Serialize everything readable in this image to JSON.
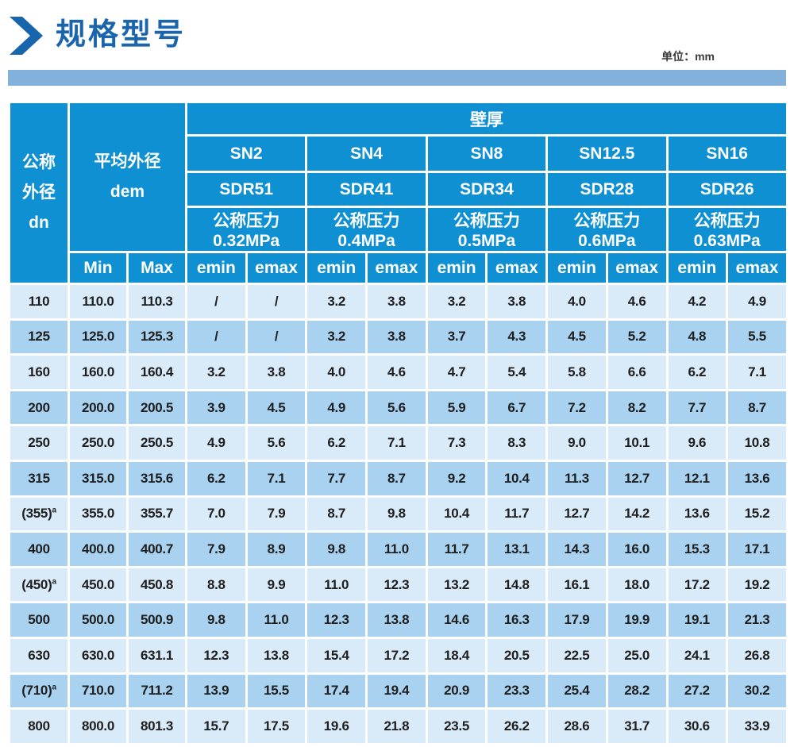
{
  "page": {
    "title": "规格型号",
    "unit_label": "单位：mm"
  },
  "colors": {
    "title_blue": "#1b65ad",
    "divider_blue": "#82b2dc",
    "header_blue": "#0f90d3",
    "row_light": "#d9eaf8",
    "row_dark": "#a8d2f0",
    "header_text": "#ffffff",
    "data_text": "#1e1e1e"
  },
  "table": {
    "header": {
      "dn_line1": "公称",
      "dn_line2": "外径",
      "dn_line3": "dn",
      "dem_line1": "平均外径",
      "dem_line2": "dem",
      "wall_thickness": "壁厚",
      "min_label": "Min",
      "max_label": "Max",
      "emin": "emin",
      "emax": "emax",
      "groups": [
        {
          "sn": "SN2",
          "sdr": "SDR51",
          "pressure": "公称压力0.32MPa"
        },
        {
          "sn": "SN4",
          "sdr": "SDR41",
          "pressure": "公称压力0.4MPa"
        },
        {
          "sn": "SN8",
          "sdr": "SDR34",
          "pressure": "公称压力0.5MPa"
        },
        {
          "sn": "SN12.5",
          "sdr": "SDR28",
          "pressure": "公称压力0.6MPa"
        },
        {
          "sn": "SN16",
          "sdr": "SDR26",
          "pressure": "公称压力0.63MPa"
        }
      ]
    },
    "rows": [
      {
        "dn": "110",
        "values": [
          "110.0",
          "110.3",
          "/",
          "/",
          "3.2",
          "3.8",
          "3.2",
          "3.8",
          "4.0",
          "4.6",
          "4.2",
          "4.9"
        ]
      },
      {
        "dn": "125",
        "values": [
          "125.0",
          "125.3",
          "/",
          "/",
          "3.2",
          "3.8",
          "3.7",
          "4.3",
          "4.5",
          "5.2",
          "4.8",
          "5.5"
        ]
      },
      {
        "dn": "160",
        "values": [
          "160.0",
          "160.4",
          "3.2",
          "3.8",
          "4.0",
          "4.6",
          "4.7",
          "5.4",
          "5.8",
          "6.6",
          "6.2",
          "7.1"
        ]
      },
      {
        "dn": "200",
        "values": [
          "200.0",
          "200.5",
          "3.9",
          "4.5",
          "4.9",
          "5.6",
          "5.9",
          "6.7",
          "7.2",
          "8.2",
          "7.7",
          "8.7"
        ]
      },
      {
        "dn": "250",
        "values": [
          "250.0",
          "250.5",
          "4.9",
          "5.6",
          "6.2",
          "7.1",
          "7.3",
          "8.3",
          "9.0",
          "10.1",
          "9.6",
          "10.8"
        ]
      },
      {
        "dn": "315",
        "values": [
          "315.0",
          "315.6",
          "6.2",
          "7.1",
          "7.7",
          "8.7",
          "9.2",
          "10.4",
          "11.3",
          "12.7",
          "12.1",
          "13.6"
        ]
      },
      {
        "dn": "(355)",
        "dn_sup": "a",
        "values": [
          "355.0",
          "355.7",
          "7.0",
          "7.9",
          "8.7",
          "9.8",
          "10.4",
          "11.7",
          "12.7",
          "14.2",
          "13.6",
          "15.2"
        ]
      },
      {
        "dn": "400",
        "values": [
          "400.0",
          "400.7",
          "7.9",
          "8.9",
          "9.8",
          "11.0",
          "11.7",
          "13.1",
          "14.3",
          "16.0",
          "15.3",
          "17.1"
        ]
      },
      {
        "dn": "(450)",
        "dn_sup": "a",
        "values": [
          "450.0",
          "450.8",
          "8.8",
          "9.9",
          "11.0",
          "12.3",
          "13.2",
          "14.8",
          "16.1",
          "18.0",
          "17.2",
          "19.2"
        ]
      },
      {
        "dn": "500",
        "values": [
          "500.0",
          "500.9",
          "9.8",
          "11.0",
          "12.3",
          "13.8",
          "14.6",
          "16.3",
          "17.9",
          "19.9",
          "19.1",
          "21.3"
        ]
      },
      {
        "dn": "630",
        "values": [
          "630.0",
          "631.1",
          "12.3",
          "13.8",
          "15.4",
          "17.2",
          "18.4",
          "20.5",
          "22.5",
          "25.0",
          "24.1",
          "26.8"
        ]
      },
      {
        "dn": "(710)",
        "dn_sup": "a",
        "values": [
          "710.0",
          "711.2",
          "13.9",
          "15.5",
          "17.4",
          "19.4",
          "20.9",
          "23.3",
          "25.4",
          "28.2",
          "27.2",
          "30.2"
        ]
      },
      {
        "dn": "800",
        "values": [
          "800.0",
          "801.3",
          "15.7",
          "17.5",
          "19.6",
          "21.8",
          "23.5",
          "26.2",
          "28.6",
          "31.7",
          "30.6",
          "33.9"
        ]
      }
    ]
  }
}
